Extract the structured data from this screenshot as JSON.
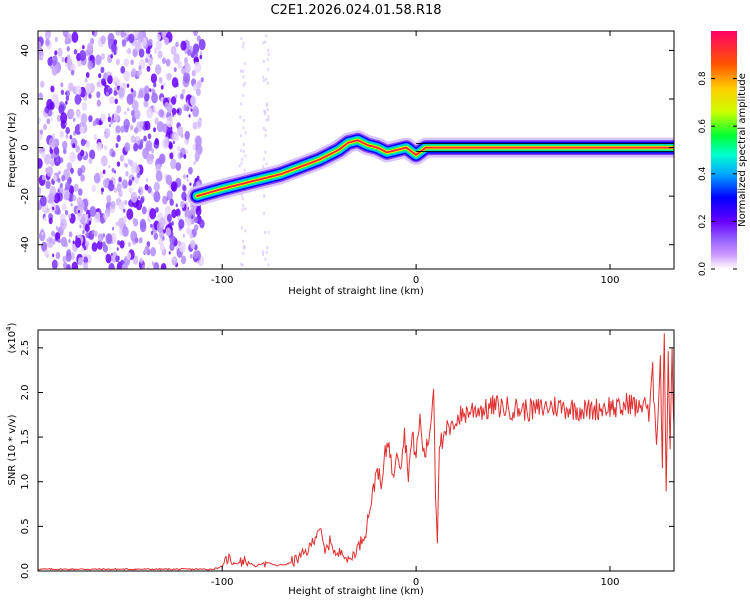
{
  "figure_title": "C2E1.2026.024.01.58.R18",
  "chart_data": [
    {
      "type": "heatmap",
      "title": "C2E1.2026.024.01.58.R18",
      "xlabel": "Height of straight line (km)",
      "ylabel": "Frequency (Hz)",
      "xlim": [
        -195,
        133
      ],
      "ylim": [
        -50,
        48
      ],
      "x_ticks": [
        -100,
        0,
        100
      ],
      "x_tick_labels": [
        "-100",
        "0",
        "100"
      ],
      "y_ticks": [
        -40,
        -20,
        0,
        20,
        40
      ],
      "y_tick_labels": [
        "-40",
        "-20",
        "0",
        "20",
        "40"
      ],
      "colorbar": {
        "label": "Normalized spectral amplitude",
        "range": [
          0,
          1
        ],
        "ticks": [
          0.0,
          0.2,
          0.4,
          0.6,
          0.8
        ],
        "tick_labels": [
          "0.0",
          "0.2",
          "0.4",
          "0.6",
          "0.8"
        ],
        "colormap": "rainbow",
        "colors": [
          "#ffffff",
          "#9966ff",
          "#6600ff",
          "#0000ff",
          "#00ccff",
          "#00ff66",
          "#ccff00",
          "#ffcc00",
          "#ff3300",
          "#ff0066"
        ]
      },
      "noise_region_x": [
        -195,
        -110
      ],
      "doppler_trace": {
        "x": [
          -113,
          -100,
          -90,
          -80,
          -70,
          -60,
          -50,
          -40,
          -35,
          -30,
          -25,
          -20,
          -15,
          -10,
          -5,
          0,
          5,
          10,
          20,
          40,
          60,
          80,
          100,
          120,
          133
        ],
        "freq": [
          -20,
          -17,
          -15,
          -13,
          -11,
          -8,
          -5,
          -1,
          2,
          3,
          1,
          0,
          -2,
          -1,
          0,
          -3,
          0,
          0,
          0,
          0,
          0,
          0,
          0,
          0,
          0
        ]
      }
    },
    {
      "type": "line",
      "xlabel": "Height of straight line (km)",
      "ylabel": "SNR (10 * v/v)",
      "y_multiplier_label": "(x10",
      "y_multiplier_exponent": "4",
      "xlim": [
        -195,
        133
      ],
      "ylim": [
        0,
        2.7
      ],
      "x_ticks": [
        -100,
        0,
        100
      ],
      "x_tick_labels": [
        "-100",
        "0",
        "100"
      ],
      "y_ticks": [
        0.0,
        0.5,
        1.0,
        1.5,
        2.0,
        2.5
      ],
      "y_tick_labels": [
        "0.0",
        "0.5",
        "1.0",
        "1.5",
        "2.0",
        "2.5"
      ],
      "series": [
        {
          "color": "#e03030",
          "x": [
            -195,
            -180,
            -160,
            -140,
            -120,
            -105,
            -100,
            -97,
            -93,
            -88,
            -83,
            -78,
            -72,
            -66,
            -60,
            -55,
            -52,
            -50,
            -47,
            -44,
            -41,
            -38,
            -35,
            -32,
            -29,
            -26,
            -24,
            -22,
            -20,
            -18,
            -16,
            -14,
            -12,
            -10,
            -8,
            -6,
            -4,
            -2,
            0,
            2,
            4,
            6,
            8,
            9,
            10,
            11,
            12,
            14,
            16,
            18,
            20,
            24,
            28,
            32,
            36,
            40,
            50,
            60,
            70,
            80,
            90,
            100,
            105,
            110,
            115,
            118,
            120,
            122,
            124,
            126,
            127,
            128,
            129,
            130,
            131,
            132,
            133
          ],
          "y": [
            0.02,
            0.02,
            0.02,
            0.02,
            0.02,
            0.02,
            0.05,
            0.15,
            0.08,
            0.12,
            0.05,
            0.1,
            0.06,
            0.08,
            0.15,
            0.25,
            0.4,
            0.5,
            0.2,
            0.35,
            0.15,
            0.25,
            0.1,
            0.2,
            0.3,
            0.45,
            0.7,
            0.9,
            1.2,
            0.9,
            1.3,
            1.5,
            1.0,
            1.4,
            1.2,
            1.55,
            1.1,
            1.5,
            1.3,
            1.7,
            1.3,
            1.4,
            1.75,
            2.15,
            0.9,
            0.35,
            1.5,
            1.4,
            1.6,
            1.55,
            1.7,
            1.75,
            1.8,
            1.82,
            1.8,
            1.85,
            1.82,
            1.8,
            1.85,
            1.82,
            1.8,
            1.85,
            1.8,
            1.9,
            1.8,
            1.95,
            1.7,
            2.2,
            1.5,
            2.35,
            1.2,
            2.7,
            0.9,
            2.45,
            1.4,
            2.5,
            1.6
          ]
        }
      ]
    }
  ]
}
